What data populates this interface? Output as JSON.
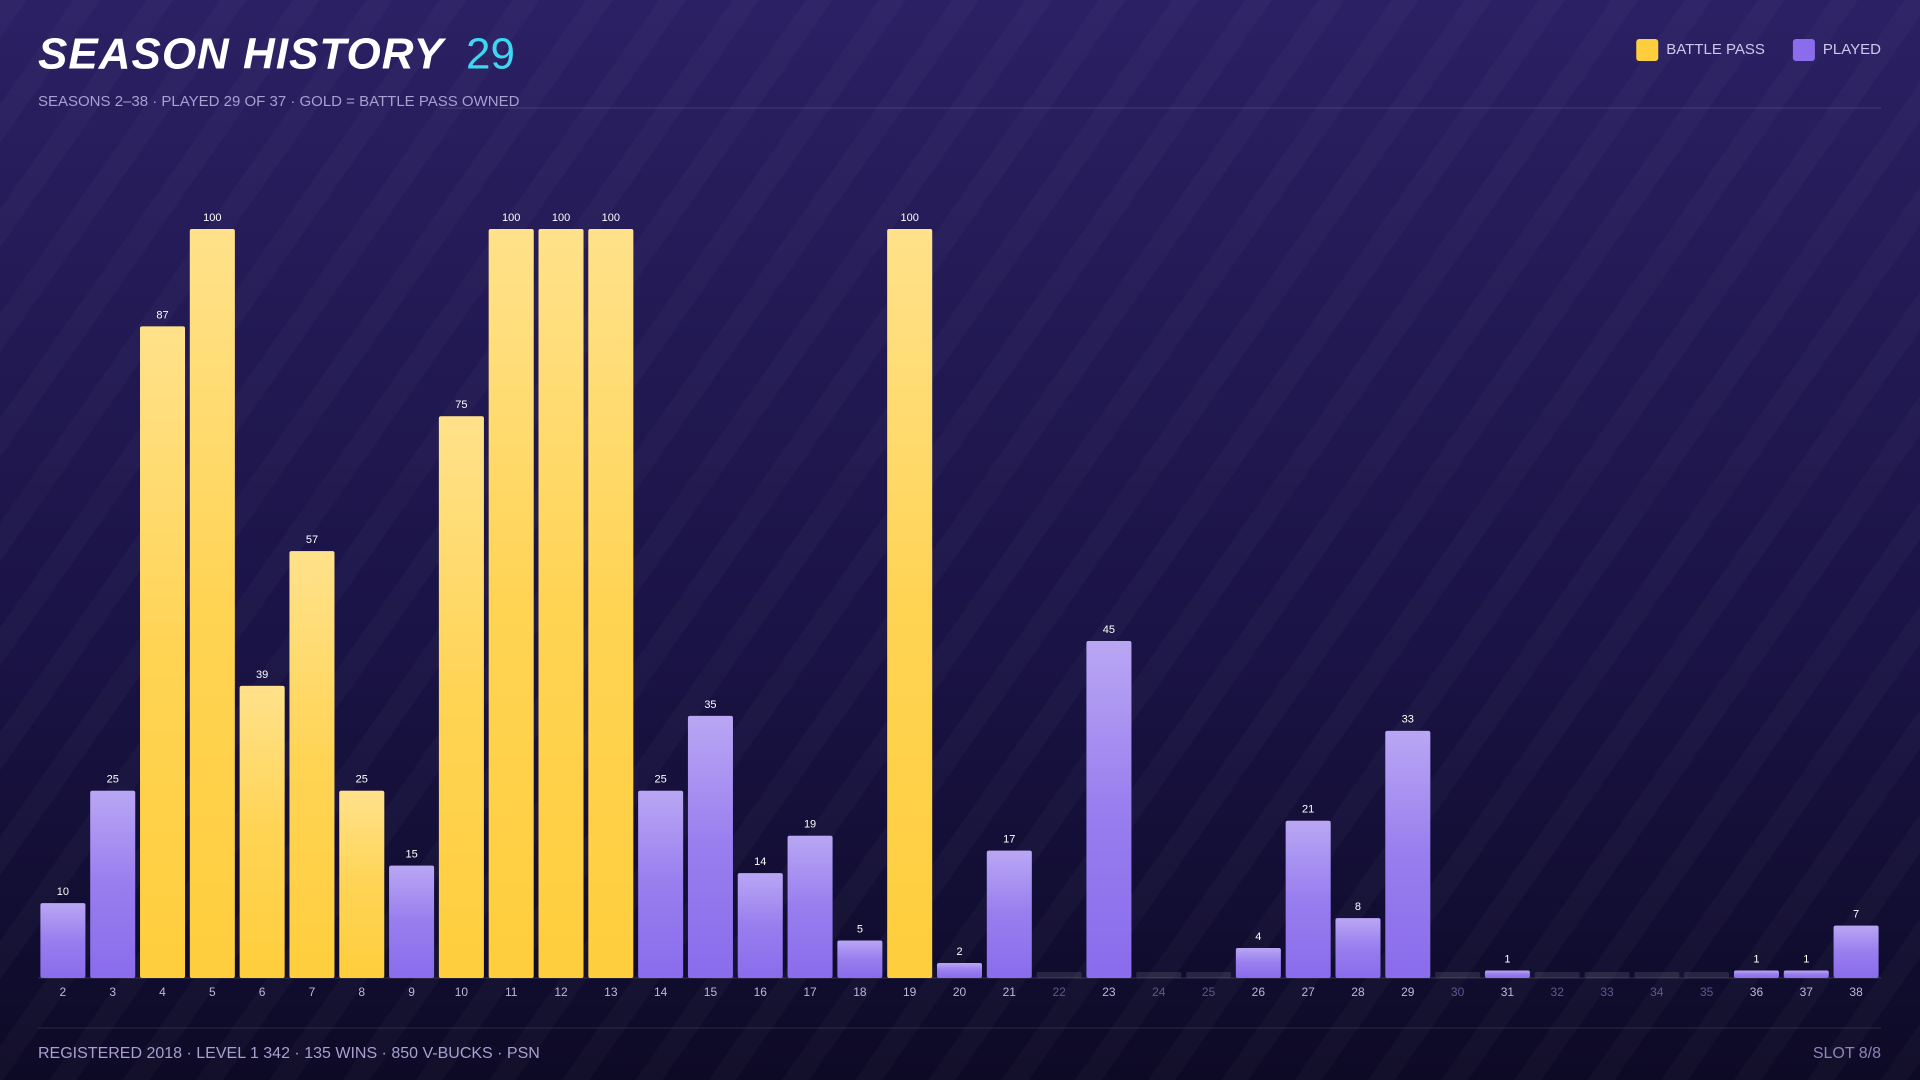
{
  "chart_data": {
    "type": "bar",
    "title": "SEASON HISTORY",
    "title_count": "29",
    "subtitle": "SEASONS 2–38  ·  PLAYED 29 OF 37  ·  GOLD = BATTLE PASS OWNED",
    "footer": "REGISTERED 2018  ·  LEVEL 1 342  ·  135 WINS  ·  850 V-BUCKS  ·  PSN",
    "footer_right": "SLOT 8/8",
    "categories": [
      2,
      3,
      4,
      5,
      6,
      7,
      8,
      9,
      10,
      11,
      12,
      13,
      14,
      15,
      16,
      17,
      18,
      19,
      20,
      21,
      22,
      23,
      24,
      25,
      26,
      27,
      28,
      29,
      30,
      31,
      32,
      33,
      34,
      35,
      36,
      37,
      38
    ],
    "series": [
      {
        "name": "BATTLE PASS",
        "color": "#ffce3d",
        "values": [
          null,
          null,
          87,
          100,
          39,
          57,
          25,
          null,
          75,
          100,
          100,
          100,
          null,
          null,
          null,
          null,
          null,
          100,
          null,
          null,
          null,
          null,
          null,
          null,
          null,
          null,
          null,
          null,
          null,
          null,
          null,
          null,
          null,
          null,
          null,
          null,
          null
        ]
      },
      {
        "name": "PLAYED",
        "color": "#8a6cec",
        "values": [
          10,
          25,
          null,
          null,
          null,
          null,
          null,
          15,
          null,
          null,
          null,
          null,
          25,
          35,
          14,
          19,
          5,
          null,
          2,
          17,
          null,
          45,
          null,
          null,
          4,
          21,
          8,
          33,
          null,
          1,
          null,
          null,
          null,
          null,
          1,
          1,
          7
        ]
      }
    ],
    "ylim": [
      0,
      100
    ]
  }
}
